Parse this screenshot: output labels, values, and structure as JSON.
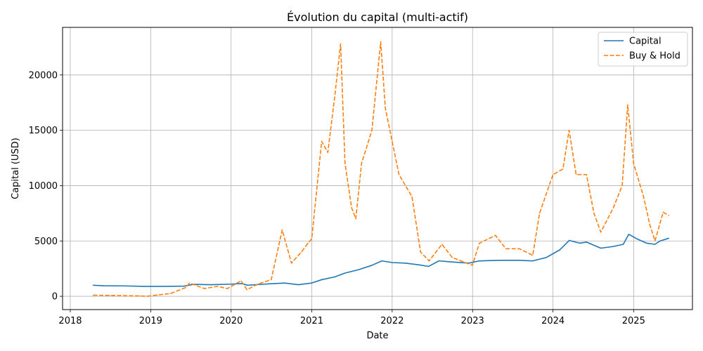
{
  "chart_data": {
    "type": "line",
    "title": "Évolution du capital (multi-actif)",
    "xlabel": "Date",
    "ylabel": "Capital (USD)",
    "xlim": [
      "2017-11-27",
      "2025-09-25"
    ],
    "ylim": [
      -1200,
      24300
    ],
    "x_ticks": [
      "2018",
      "2019",
      "2020",
      "2021",
      "2022",
      "2023",
      "2024",
      "2025"
    ],
    "y_ticks": [
      0,
      5000,
      10000,
      15000,
      20000
    ],
    "grid": true,
    "legend_position": "top-right",
    "series": [
      {
        "name": "Capital",
        "color": "#1f77b4",
        "style": "solid",
        "points": [
          [
            "2018-04-15",
            1000
          ],
          [
            "2018-06-01",
            950
          ],
          [
            "2018-09-01",
            940
          ],
          [
            "2018-12-01",
            900
          ],
          [
            "2019-03-01",
            900
          ],
          [
            "2019-06-01",
            920
          ],
          [
            "2019-07-15",
            1080
          ],
          [
            "2019-10-01",
            1050
          ],
          [
            "2020-01-01",
            1100
          ],
          [
            "2020-02-20",
            1150
          ],
          [
            "2020-03-15",
            1000
          ],
          [
            "2020-06-01",
            1100
          ],
          [
            "2020-09-01",
            1200
          ],
          [
            "2020-11-01",
            1050
          ],
          [
            "2021-01-01",
            1200
          ],
          [
            "2021-02-15",
            1500
          ],
          [
            "2021-04-15",
            1750
          ],
          [
            "2021-06-01",
            2100
          ],
          [
            "2021-08-01",
            2400
          ],
          [
            "2021-10-01",
            2800
          ],
          [
            "2021-11-15",
            3200
          ],
          [
            "2022-01-01",
            3050
          ],
          [
            "2022-03-01",
            3000
          ],
          [
            "2022-05-01",
            2850
          ],
          [
            "2022-06-15",
            2700
          ],
          [
            "2022-08-01",
            3200
          ],
          [
            "2022-10-01",
            3100
          ],
          [
            "2022-12-15",
            3000
          ],
          [
            "2023-02-01",
            3200
          ],
          [
            "2023-05-01",
            3250
          ],
          [
            "2023-08-01",
            3250
          ],
          [
            "2023-10-01",
            3200
          ],
          [
            "2023-12-01",
            3500
          ],
          [
            "2024-02-01",
            4200
          ],
          [
            "2024-03-15",
            5050
          ],
          [
            "2024-05-01",
            4800
          ],
          [
            "2024-06-01",
            4900
          ],
          [
            "2024-08-05",
            4350
          ],
          [
            "2024-10-01",
            4500
          ],
          [
            "2024-11-15",
            4700
          ],
          [
            "2024-12-10",
            5600
          ],
          [
            "2025-01-15",
            5200
          ],
          [
            "2025-03-01",
            4800
          ],
          [
            "2025-04-08",
            4700
          ],
          [
            "2025-05-01",
            5000
          ],
          [
            "2025-06-10",
            5250
          ]
        ]
      },
      {
        "name": "Buy & Hold",
        "color": "#ff7f0e",
        "style": "dashed",
        "points": [
          [
            "2018-04-15",
            100
          ],
          [
            "2018-07-01",
            80
          ],
          [
            "2018-11-15",
            30
          ],
          [
            "2018-12-15",
            0
          ],
          [
            "2019-02-01",
            120
          ],
          [
            "2019-04-01",
            250
          ],
          [
            "2019-06-10",
            800
          ],
          [
            "2019-06-26",
            1200
          ],
          [
            "2019-09-01",
            700
          ],
          [
            "2019-11-01",
            900
          ],
          [
            "2019-12-15",
            700
          ],
          [
            "2020-02-15",
            1400
          ],
          [
            "2020-03-13",
            600
          ],
          [
            "2020-05-01",
            1100
          ],
          [
            "2020-07-01",
            1500
          ],
          [
            "2020-08-20",
            6000
          ],
          [
            "2020-10-01",
            3000
          ],
          [
            "2020-11-15",
            4000
          ],
          [
            "2020-12-15",
            4800
          ],
          [
            "2021-01-01",
            5200
          ],
          [
            "2021-02-15",
            14000
          ],
          [
            "2021-03-15",
            13000
          ],
          [
            "2021-04-15",
            18000
          ],
          [
            "2021-05-12",
            22800
          ],
          [
            "2021-06-01",
            12000
          ],
          [
            "2021-07-01",
            8000
          ],
          [
            "2021-07-20",
            7000
          ],
          [
            "2021-08-15",
            12000
          ],
          [
            "2021-10-01",
            15000
          ],
          [
            "2021-11-10",
            23000
          ],
          [
            "2021-12-01",
            17000
          ],
          [
            "2022-01-01",
            14000
          ],
          [
            "2022-02-01",
            11000
          ],
          [
            "2022-04-01",
            9000
          ],
          [
            "2022-05-10",
            4000
          ],
          [
            "2022-06-18",
            3200
          ],
          [
            "2022-08-15",
            4700
          ],
          [
            "2022-10-01",
            3500
          ],
          [
            "2022-11-10",
            3200
          ],
          [
            "2022-12-31",
            2800
          ],
          [
            "2023-02-01",
            4800
          ],
          [
            "2023-04-15",
            5500
          ],
          [
            "2023-06-01",
            4300
          ],
          [
            "2023-08-01",
            4300
          ],
          [
            "2023-10-01",
            3700
          ],
          [
            "2023-11-01",
            7500
          ],
          [
            "2024-01-01",
            11000
          ],
          [
            "2024-02-15",
            11500
          ],
          [
            "2024-03-14",
            15000
          ],
          [
            "2024-04-15",
            11000
          ],
          [
            "2024-06-01",
            11000
          ],
          [
            "2024-07-05",
            7500
          ],
          [
            "2024-08-05",
            5800
          ],
          [
            "2024-10-01",
            8000
          ],
          [
            "2024-11-10",
            10000
          ],
          [
            "2024-12-05",
            17300
          ],
          [
            "2025-01-01",
            12000
          ],
          [
            "2025-02-15",
            9000
          ],
          [
            "2025-03-15",
            6500
          ],
          [
            "2025-04-08",
            5000
          ],
          [
            "2025-05-15",
            7600
          ],
          [
            "2025-06-10",
            7300
          ]
        ]
      }
    ]
  }
}
